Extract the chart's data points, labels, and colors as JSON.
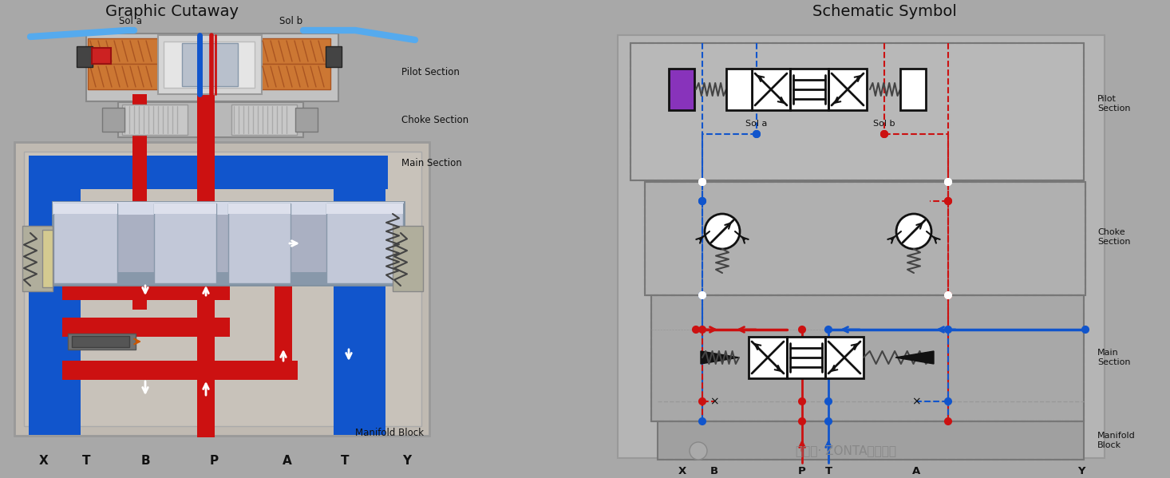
{
  "bg": "#a8a8a8",
  "red": "#cc1111",
  "blue": "#1155cc",
  "white": "#ffffff",
  "black": "#111111",
  "purple": "#8833bb",
  "orange": "#dd8822",
  "cable_blue": "#55aaee",
  "gray1": "#c5c5c5",
  "gray2": "#b0b0b0",
  "gray3": "#989898",
  "gray4": "#d8d8d8",
  "gray_body": "#c0bdb8",
  "left_title": "Graphic Cutaway",
  "right_title": "Schematic Symbol",
  "port_labels_left": [
    "X",
    "T",
    "B",
    "P",
    "A",
    "T",
    "Y"
  ],
  "port_xs_left": [
    55,
    108,
    182,
    268,
    360,
    432,
    510
  ],
  "sol_a": "Sol a",
  "sol_b": "Sol b",
  "pilot_label": "Pilot Section",
  "choke_label": "Choke Section",
  "main_label": "Main Section",
  "manifold_label": "Manifold Block",
  "watermark": "公众号· ZONTA中泰机电"
}
